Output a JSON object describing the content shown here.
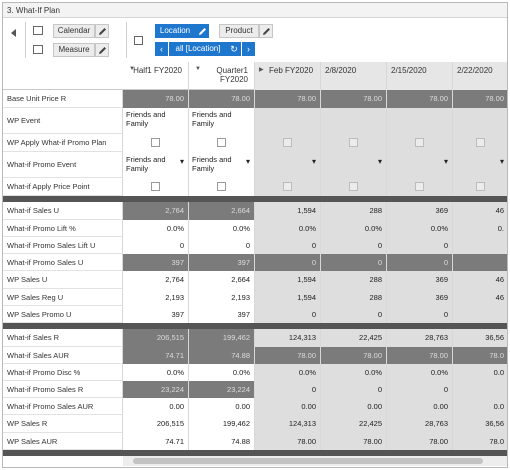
{
  "window": {
    "title": "3. What-If Plan"
  },
  "toolbar": {
    "calendar_label": "Calendar",
    "measure_label": "Measure",
    "location_label": "Location",
    "product_label": "Product",
    "filter_label": "all [Location]"
  },
  "columns": [
    {
      "label": "Half1 FY2020"
    },
    {
      "label": "Quarter1 FY2020"
    },
    {
      "label": "Feb FY2020"
    },
    {
      "label": "2/8/2020"
    },
    {
      "label": "2/15/2020"
    },
    {
      "label": "2/22/2020"
    }
  ],
  "rows": {
    "base_unit_price": {
      "label": "Base Unit Price R",
      "values": [
        "78.00",
        "78.00",
        "78.00",
        "78.00",
        "78.00",
        "78.00"
      ]
    },
    "wp_event": {
      "label": "WP Event",
      "values": [
        "Friends and Family",
        "Friends and Family",
        "",
        "",
        "",
        ""
      ]
    },
    "wp_apply_whatif": {
      "label": "WP Apply What-if Promo Plan"
    },
    "whatif_promo_event": {
      "label": "What-if Promo Event",
      "values": [
        "Friends and Family",
        "Friends and Family",
        "",
        "",
        "",
        ""
      ]
    },
    "whatif_apply_price": {
      "label": "What-if Apply Price Point"
    },
    "whatif_sales_u": {
      "label": "What-if Sales U",
      "values": [
        "2,764",
        "2,664",
        "1,594",
        "288",
        "369",
        "46"
      ]
    },
    "whatif_promo_lift_pct": {
      "label": "What-if Promo Lift %",
      "values": [
        "0.0%",
        "0.0%",
        "0.0%",
        "0.0%",
        "0.0%",
        "0."
      ]
    },
    "whatif_promo_sales_lift_u": {
      "label": "What-if Promo Sales Lift U",
      "values": [
        "0",
        "0",
        "0",
        "0",
        "0",
        ""
      ]
    },
    "whatif_promo_sales_u": {
      "label": "What-if Promo Sales U",
      "values": [
        "397",
        "397",
        "0",
        "0",
        "0",
        ""
      ]
    },
    "wp_sales_u": {
      "label": "WP Sales U",
      "values": [
        "2,764",
        "2,664",
        "1,594",
        "288",
        "369",
        "46"
      ]
    },
    "wp_sales_reg_u": {
      "label": "WP Sales Reg U",
      "values": [
        "2,193",
        "2,193",
        "1,594",
        "288",
        "369",
        "46"
      ]
    },
    "wp_sales_promo_u": {
      "label": "WP Sales Promo U",
      "values": [
        "397",
        "397",
        "0",
        "0",
        "0",
        ""
      ]
    },
    "whatif_sales_r": {
      "label": "What-if Sales R",
      "values": [
        "206,515",
        "199,462",
        "124,313",
        "22,425",
        "28,763",
        "36,56"
      ]
    },
    "whatif_sales_aur": {
      "label": "What-if Sales AUR",
      "values": [
        "74.71",
        "74.88",
        "78.00",
        "78.00",
        "78.00",
        "78.0"
      ]
    },
    "whatif_promo_disc_pct": {
      "label": "What-if Promo Disc %",
      "values": [
        "0.0%",
        "0.0%",
        "0.0%",
        "0.0%",
        "0.0%",
        "0.0"
      ]
    },
    "whatif_promo_sales_r": {
      "label": "What-if Promo Sales R",
      "values": [
        "23,224",
        "23,224",
        "0",
        "0",
        "0",
        ""
      ]
    },
    "whatif_promo_sales_aur": {
      "label": "What-if Promo Sales AUR",
      "values": [
        "0.00",
        "0.00",
        "0.00",
        "0.00",
        "0.00",
        "0.0"
      ]
    },
    "wp_sales_r": {
      "label": "WP Sales R",
      "values": [
        "206,515",
        "199,462",
        "124,313",
        "22,425",
        "28,763",
        "36,56"
      ]
    },
    "wp_sales_aur": {
      "label": "WP Sales AUR",
      "values": [
        "74.71",
        "74.88",
        "78.00",
        "78.00",
        "78.00",
        "78.0"
      ]
    }
  }
}
